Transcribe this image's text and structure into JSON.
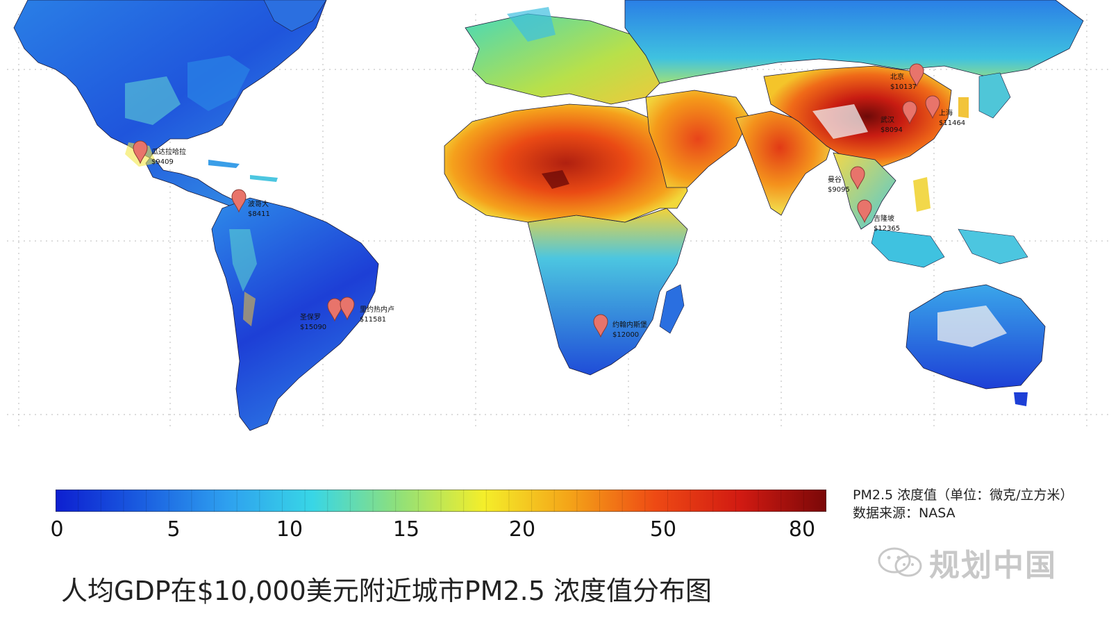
{
  "map": {
    "markers": [
      {
        "name": "瓜达拉哈拉",
        "gdp": "$9409"
      },
      {
        "name": "波哥大",
        "gdp": "$8411"
      },
      {
        "name": "圣保罗",
        "gdp": "$15090"
      },
      {
        "name": "里约热内卢",
        "gdp": "$11581"
      },
      {
        "name": "约翰内斯堡",
        "gdp": "$12000"
      },
      {
        "name": "北京",
        "gdp": "$10137"
      },
      {
        "name": "上海",
        "gdp": "$11464"
      },
      {
        "name": "武汉",
        "gdp": "$8094"
      },
      {
        "name": "曼谷",
        "gdp": "$9095"
      },
      {
        "name": "吉隆坡",
        "gdp": "$12365"
      }
    ],
    "marker_color": "#e8746b",
    "colors": {
      "very_low": "#1a2fd6",
      "low": "#2f86e8",
      "medium": "#3fd3c9",
      "elevated": "#f2e23a",
      "high": "#f07a1a",
      "very_high": "#d8231a",
      "extreme": "#7a0d0a"
    }
  },
  "colorbar": {
    "tick_labels": [
      "0",
      "5",
      "10",
      "15",
      "20",
      "50",
      "80"
    ],
    "gradient_stops": [
      "#0d1fd0",
      "#1a5de0",
      "#2ea0ef",
      "#38d6e6",
      "#8fe07a",
      "#f4ee2a",
      "#f4a418",
      "#ee4a14",
      "#d11a12",
      "#7a0808"
    ],
    "unit_label": "PM2.5 浓度值（单位：微克/立方米）",
    "source_label": "数据来源：NASA"
  },
  "title": "人均GDP在$10,000美元附近城市PM2.5 浓度值分布图",
  "watermark": {
    "text": "规划中国",
    "icon": "wechat-icon"
  }
}
